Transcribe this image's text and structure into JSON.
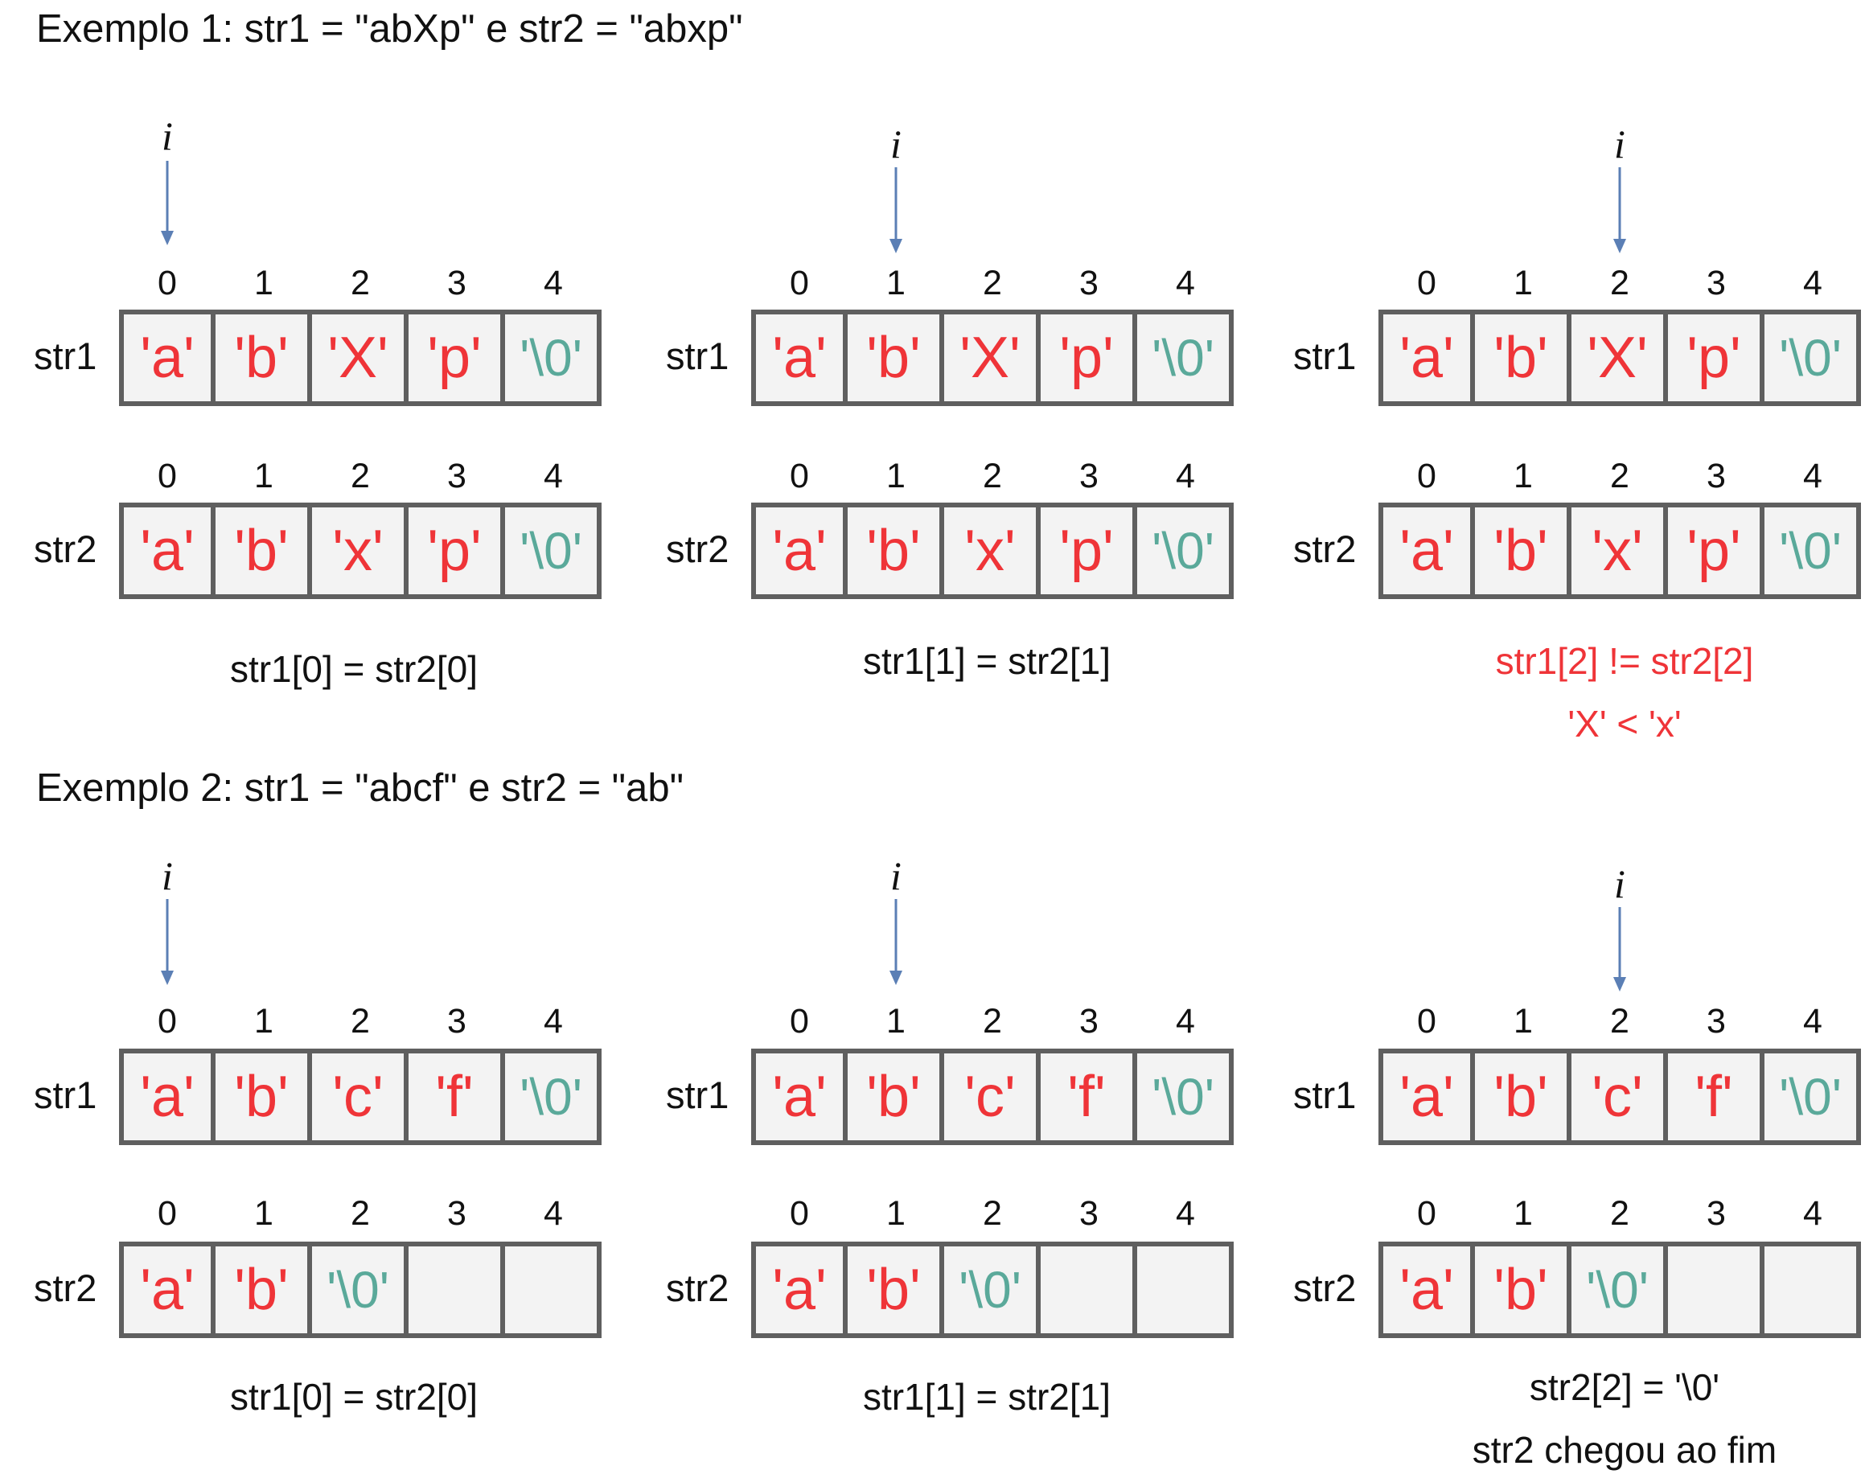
{
  "examples": [
    {
      "title": "Exemplo 1: str1 = \"abXp\" e str2 = \"abxp\"",
      "steps": [
        {
          "pointer": "i",
          "pointer_index": 0,
          "str1_label": "str1",
          "str2_label": "str2",
          "indices": [
            "0",
            "1",
            "2",
            "3",
            "4"
          ],
          "str1": [
            "'a'",
            "'b'",
            "'X'",
            "'p'",
            "'\\0'"
          ],
          "str2": [
            "'a'",
            "'b'",
            "'x'",
            "'p'",
            "'\\0'"
          ],
          "caption": [
            "str1[0] = str2[0]"
          ]
        },
        {
          "pointer": "i",
          "pointer_index": 1,
          "str1_label": "str1",
          "str2_label": "str2",
          "indices": [
            "0",
            "1",
            "2",
            "3",
            "4"
          ],
          "str1": [
            "'a'",
            "'b'",
            "'X'",
            "'p'",
            "'\\0'"
          ],
          "str2": [
            "'a'",
            "'b'",
            "'x'",
            "'p'",
            "'\\0'"
          ],
          "caption": [
            "str1[1] = str2[1]"
          ]
        },
        {
          "pointer": "i",
          "pointer_index": 2,
          "str1_label": "str1",
          "str2_label": "str2",
          "indices": [
            "0",
            "1",
            "2",
            "3",
            "4"
          ],
          "str1": [
            "'a'",
            "'b'",
            "'X'",
            "'p'",
            "'\\0'"
          ],
          "str2": [
            "'a'",
            "'b'",
            "'x'",
            "'p'",
            "'\\0'"
          ],
          "caption": [
            "str1[2] != str2[2]",
            "'X' < 'x'"
          ],
          "caption_color": "#ef3438"
        }
      ]
    },
    {
      "title": "Exemplo 2: str1 = \"abcf\" e str2 = \"ab\"",
      "steps": [
        {
          "pointer": "i",
          "pointer_index": 0,
          "str1_label": "str1",
          "str2_label": "str2",
          "indices": [
            "0",
            "1",
            "2",
            "3",
            "4"
          ],
          "str1": [
            "'a'",
            "'b'",
            "'c'",
            "'f'",
            "'\\0'"
          ],
          "str2": [
            "'a'",
            "'b'",
            "'\\0'",
            "",
            ""
          ],
          "caption": [
            "str1[0] = str2[0]"
          ]
        },
        {
          "pointer": "i",
          "pointer_index": 1,
          "str1_label": "str1",
          "str2_label": "str2",
          "indices": [
            "0",
            "1",
            "2",
            "3",
            "4"
          ],
          "str1": [
            "'a'",
            "'b'",
            "'c'",
            "'f'",
            "'\\0'"
          ],
          "str2": [
            "'a'",
            "'b'",
            "'\\0'",
            "",
            ""
          ],
          "caption": [
            "str1[1] = str2[1]"
          ]
        },
        {
          "pointer": "i",
          "pointer_index": 2,
          "str1_label": "str1",
          "str2_label": "str2",
          "indices": [
            "0",
            "1",
            "2",
            "3",
            "4"
          ],
          "str1": [
            "'a'",
            "'b'",
            "'c'",
            "'f'",
            "'\\0'"
          ],
          "str2": [
            "'a'",
            "'b'",
            "'\\0'",
            "",
            ""
          ],
          "caption": [
            "str2[2] = '\\0'",
            "str2 chegou ao fim"
          ]
        }
      ]
    }
  ],
  "colors": {
    "char": "#ef3438",
    "terminator": "#5aa99a",
    "cell_fill": "#f3f3f3",
    "cell_border": "#5f5f5f",
    "arrow": "#5b7fb5"
  }
}
